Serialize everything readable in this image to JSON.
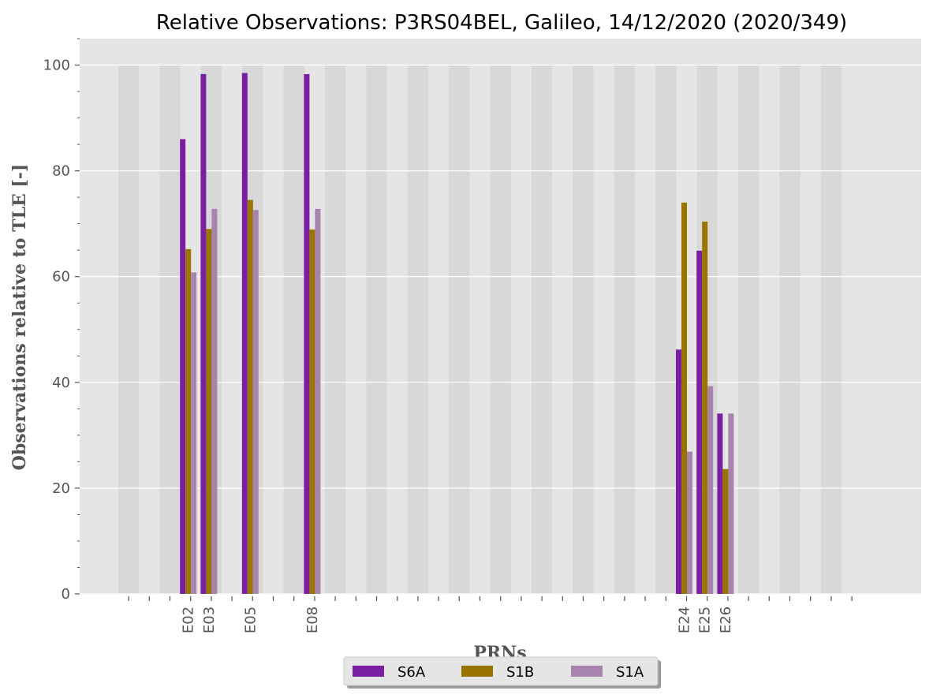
{
  "chart_data": {
    "type": "bar",
    "title": "Relative Observations: P3RS04BEL, Galileo, 14/12/2020 (2020/349)",
    "xlabel": "PRNs",
    "ylabel": "Observations relative to TLE [-]",
    "ylim": [
      0,
      105
    ],
    "yticks": [
      0,
      20,
      40,
      60,
      80,
      100
    ],
    "grid": true,
    "legend_position": "bottom-center",
    "slots": 36,
    "categories": [
      "E02",
      "E03",
      "E05",
      "E08",
      "E24",
      "E25",
      "E26"
    ],
    "category_slots": [
      3,
      4,
      6,
      9,
      27,
      28,
      29
    ],
    "series": [
      {
        "name": "S6A",
        "color": "#7b1fa2",
        "values": [
          86.0,
          98.3,
          98.5,
          98.3,
          46.2,
          64.9,
          34.1
        ]
      },
      {
        "name": "S1B",
        "color": "#9a7400",
        "values": [
          65.2,
          69.0,
          74.5,
          68.9,
          74.0,
          70.4,
          23.6
        ]
      },
      {
        "name": "S1A",
        "color": "#a784ad",
        "values": [
          60.8,
          72.8,
          72.6,
          72.8,
          26.9,
          39.3,
          34.1
        ]
      }
    ]
  }
}
